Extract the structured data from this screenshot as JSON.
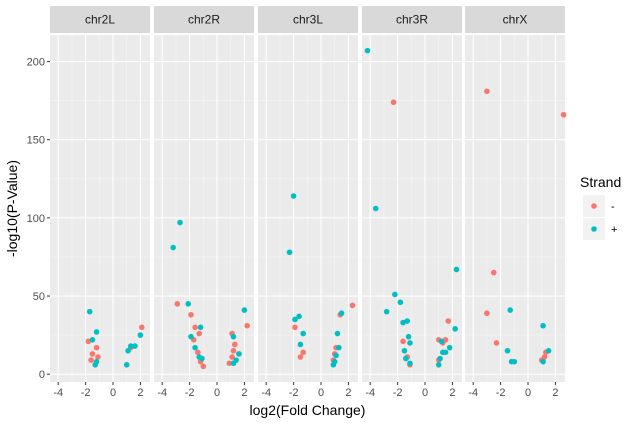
{
  "chart_data": {
    "type": "scatter",
    "facets": [
      "chr2L",
      "chr2R",
      "chr3L",
      "chr3R",
      "chrX"
    ],
    "xlabel": "log2(Fold Change)",
    "ylabel": "-log10(P-Value)",
    "xlim": [
      -4.6,
      2.7
    ],
    "ylim": [
      -5,
      217
    ],
    "x_ticks": [
      -4,
      -2,
      0,
      2
    ],
    "y_ticks": [
      0,
      50,
      100,
      150,
      200
    ],
    "grid": true,
    "legend": {
      "title": "Strand",
      "position": "right",
      "entries": [
        {
          "label": "-",
          "color": "#F8766D"
        },
        {
          "label": "+",
          "color": "#00BFC4"
        }
      ]
    },
    "series": [
      {
        "name": "-",
        "color": "#F8766D",
        "points": {
          "chr2L": [
            [
              -1.8,
              21
            ],
            [
              -1.5,
              13
            ],
            [
              -1.2,
              17
            ],
            [
              -1.1,
              11
            ],
            [
              -1.6,
              9
            ],
            [
              2.1,
              30
            ],
            [
              1.3,
              17
            ]
          ],
          "chr2R": [
            [
              -2.9,
              45
            ],
            [
              -1.9,
              38
            ],
            [
              -1.6,
              30
            ],
            [
              -1.3,
              26
            ],
            [
              -1.4,
              14
            ],
            [
              -1.2,
              8
            ],
            [
              -1.0,
              5
            ],
            [
              -1.7,
              22
            ],
            [
              1.1,
              26
            ],
            [
              1.3,
              19
            ],
            [
              1.1,
              11
            ],
            [
              1.2,
              15
            ],
            [
              1.6,
              13
            ],
            [
              2.2,
              31
            ],
            [
              0.9,
              7
            ]
          ],
          "chr3L": [
            [
              -1.9,
              30
            ],
            [
              -1.3,
              14
            ],
            [
              -1.5,
              11
            ],
            [
              1.4,
              38
            ],
            [
              2.3,
              44
            ],
            [
              1.1,
              17
            ],
            [
              0.9,
              9
            ],
            [
              1.0,
              13
            ]
          ],
          "chr3R": [
            [
              -2.3,
              174
            ],
            [
              -1.6,
              21
            ],
            [
              -1.3,
              11
            ],
            [
              -1.1,
              6
            ],
            [
              1.0,
              22
            ],
            [
              1.3,
              20
            ],
            [
              1.7,
              34
            ],
            [
              1.5,
              22
            ],
            [
              1.0,
              9
            ]
          ],
          "chrX": [
            [
              -3.0,
              181
            ],
            [
              -2.5,
              65
            ],
            [
              -3.0,
              39
            ],
            [
              -2.3,
              20
            ],
            [
              2.6,
              166
            ],
            [
              1.3,
              14
            ],
            [
              1.2,
              11
            ],
            [
              1.0,
              9
            ]
          ]
        }
      },
      {
        "name": "+",
        "color": "#00BFC4",
        "points": {
          "chr2L": [
            [
              -1.7,
              40
            ],
            [
              -1.2,
              27
            ],
            [
              -1.5,
              22
            ],
            [
              -1.2,
              8
            ],
            [
              -1.3,
              6
            ],
            [
              1.1,
              15
            ],
            [
              1.3,
              18
            ],
            [
              1.6,
              18
            ],
            [
              2.0,
              25
            ],
            [
              1.0,
              6
            ]
          ],
          "chr2R": [
            [
              -3.2,
              81
            ],
            [
              -2.7,
              97
            ],
            [
              -2.1,
              45
            ],
            [
              -1.2,
              30
            ],
            [
              -1.9,
              24
            ],
            [
              -1.6,
              17
            ],
            [
              -1.3,
              11
            ],
            [
              -1.1,
              10
            ],
            [
              1.2,
              24
            ],
            [
              1.6,
              13
            ],
            [
              2.0,
              41
            ],
            [
              1.4,
              9
            ],
            [
              1.2,
              7
            ]
          ],
          "chr3L": [
            [
              -2.0,
              114
            ],
            [
              -2.3,
              78
            ],
            [
              -1.9,
              35
            ],
            [
              -1.6,
              37
            ],
            [
              -1.3,
              26
            ],
            [
              -1.5,
              19
            ],
            [
              1.2,
              26
            ],
            [
              1.5,
              39
            ],
            [
              1.1,
              12
            ],
            [
              1.3,
              17
            ],
            [
              1.0,
              8
            ],
            [
              0.9,
              6
            ]
          ],
          "chr3R": [
            [
              -4.2,
              207
            ],
            [
              -3.6,
              106
            ],
            [
              -2.8,
              40
            ],
            [
              -2.2,
              51
            ],
            [
              -1.8,
              46
            ],
            [
              -1.3,
              34
            ],
            [
              -1.6,
              33
            ],
            [
              -1.2,
              24
            ],
            [
              -1.5,
              15
            ],
            [
              -1.1,
              20
            ],
            [
              -1.4,
              10
            ],
            [
              -1.1,
              7
            ],
            [
              1.0,
              6
            ],
            [
              1.1,
              10
            ],
            [
              1.3,
              14
            ],
            [
              1.5,
              14
            ],
            [
              1.8,
              17
            ],
            [
              1.2,
              21
            ],
            [
              2.3,
              67
            ],
            [
              2.2,
              29
            ]
          ],
          "chrX": [
            [
              -1.3,
              41
            ],
            [
              -1.5,
              15
            ],
            [
              -1.2,
              8
            ],
            [
              -1.0,
              8
            ],
            [
              1.1,
              31
            ],
            [
              1.5,
              15
            ],
            [
              1.1,
              8
            ]
          ]
        }
      }
    ]
  }
}
